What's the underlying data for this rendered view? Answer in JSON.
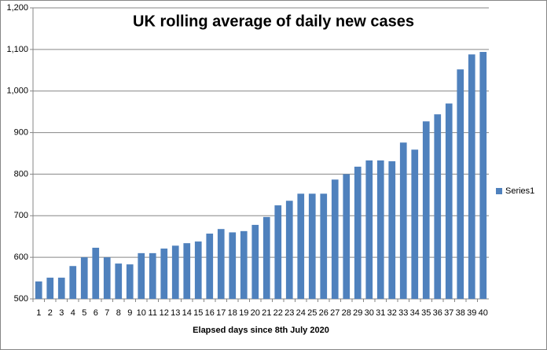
{
  "chart_data": {
    "type": "bar",
    "title": "UK rolling average of  daily new cases",
    "x_label": "Elapsed days since 8th July 2020",
    "categories": [
      "1",
      "2",
      "3",
      "4",
      "5",
      "6",
      "7",
      "8",
      "9",
      "10",
      "11",
      "12",
      "13",
      "14",
      "15",
      "16",
      "17",
      "18",
      "19",
      "20",
      "21",
      "22",
      "23",
      "24",
      "25",
      "26",
      "27",
      "28",
      "29",
      "30",
      "31",
      "32",
      "33",
      "34",
      "35",
      "36",
      "37",
      "38",
      "39",
      "40"
    ],
    "series": [
      {
        "name": "Series1",
        "color": "#4f81bd",
        "values": [
          542,
          551,
          551,
          579,
          600,
          623,
          600,
          585,
          583,
          610,
          610,
          621,
          628,
          634,
          638,
          657,
          668,
          660,
          663,
          678,
          697,
          725,
          736,
          753,
          753,
          753,
          787,
          800,
          818,
          833,
          833,
          831,
          876,
          859,
          927,
          944,
          970,
          1052,
          1088,
          1094
        ]
      }
    ],
    "ylim": [
      500,
      1200
    ],
    "yticks": [
      500,
      600,
      700,
      800,
      900,
      {
        "value": 1000,
        "label": "1,000"
      },
      {
        "value": 1100,
        "label": "1,100"
      },
      {
        "value": 1200,
        "label": "1,200"
      }
    ],
    "grid": true,
    "legend": "right"
  }
}
